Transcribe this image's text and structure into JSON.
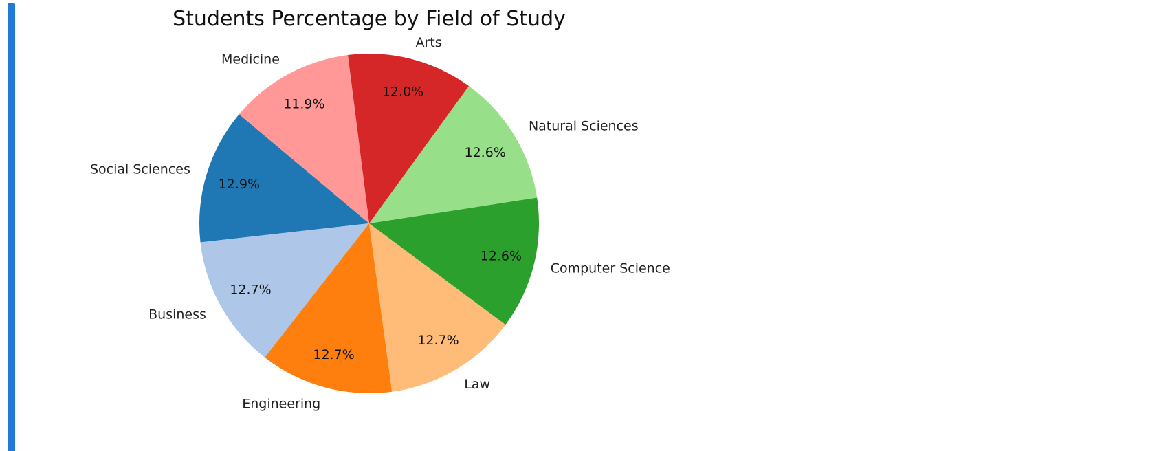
{
  "accent_color": "#1f7ad8",
  "chart_data": {
    "type": "pie",
    "title": "Students Percentage by Field of Study",
    "categories": [
      "Social Sciences",
      "Business",
      "Engineering",
      "Law",
      "Computer Science",
      "Natural Sciences",
      "Arts",
      "Medicine"
    ],
    "values": [
      12.9,
      12.7,
      12.7,
      12.7,
      12.6,
      12.6,
      12.0,
      11.9
    ],
    "value_labels": [
      "12.9%",
      "12.7%",
      "12.7%",
      "12.7%",
      "12.6%",
      "12.6%",
      "12.0%",
      "11.9%"
    ],
    "colors": [
      "#1f77b4",
      "#aec7e8",
      "#ff7f0e",
      "#ffbb78",
      "#2ca02c",
      "#98df8a",
      "#d62728",
      "#ff9896"
    ],
    "start_angle_deg": 140,
    "direction": "counterclockwise",
    "legend": "none"
  }
}
